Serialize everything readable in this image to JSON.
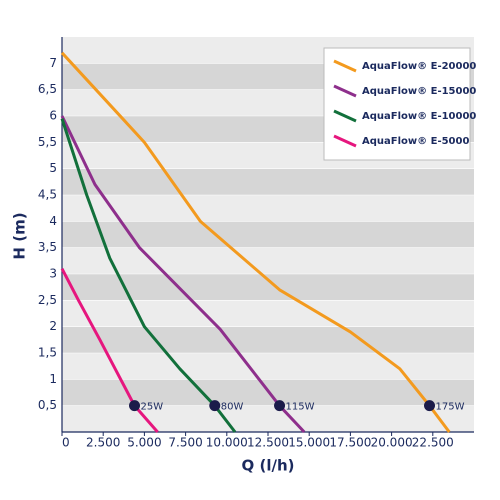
{
  "chart_data": {
    "type": "line",
    "x_label": "Q (l/h)",
    "y_label": "H (m)",
    "xlim": [
      0,
      25000
    ],
    "ylim": [
      0,
      7.5
    ],
    "xticks": [
      0,
      {
        "value": 2500,
        "label": "2.500"
      },
      {
        "value": 5000,
        "label": "5.000"
      },
      {
        "value": 7500,
        "label": "7.500"
      },
      {
        "value": 10000,
        "label": "10.000"
      },
      {
        "value": 12500,
        "label": "12.500"
      },
      {
        "value": 15000,
        "label": "15.000"
      },
      {
        "value": 17500,
        "label": "17.500"
      },
      {
        "value": 20000,
        "label": "20.000"
      },
      {
        "value": 22500,
        "label": "22.500"
      }
    ],
    "yticks": [
      {
        "value": 0.5,
        "label": "0,5"
      },
      1,
      {
        "value": 1.5,
        "label": "1,5"
      },
      2,
      {
        "value": 2.5,
        "label": "2,5"
      },
      3,
      {
        "value": 3.5,
        "label": "3,5"
      },
      4,
      {
        "value": 4.5,
        "label": "4,5"
      },
      5,
      {
        "value": 5.5,
        "label": "5,5"
      },
      6,
      {
        "value": 6.5,
        "label": "6,5"
      },
      7
    ],
    "grid": true,
    "legend_position": "top-right",
    "series": [
      {
        "name": "AquaFlow® E-20000",
        "color": "#f39a1e",
        "x": [
          0,
          5000,
          8400,
          13200,
          17500,
          20500,
          22300,
          23500
        ],
        "values": [
          7.2,
          5.5,
          4.0,
          2.7,
          1.9,
          1.2,
          0.5,
          0
        ]
      },
      {
        "name": "AquaFlow® E-15000",
        "color": "#8e2f8c",
        "x": [
          0,
          2000,
          4700,
          9600,
          13200,
          14700
        ],
        "values": [
          6.0,
          4.7,
          3.5,
          1.95,
          0.5,
          0
        ]
      },
      {
        "name": "AquaFlow® E-10000",
        "color": "#12703b",
        "x": [
          0,
          1500,
          2900,
          5000,
          7150,
          9270,
          10500
        ],
        "values": [
          5.95,
          4.5,
          3.3,
          2.0,
          1.2,
          0.5,
          0
        ]
      },
      {
        "name": "AquaFlow® E-5000",
        "color": "#e6167e",
        "x": [
          0,
          1000,
          2300,
          4400,
          5800
        ],
        "values": [
          3.1,
          2.5,
          1.75,
          0.5,
          0
        ]
      }
    ],
    "annotations": [
      {
        "x": 4400,
        "y": 0.5,
        "text": "25W"
      },
      {
        "x": 9270,
        "y": 0.5,
        "text": "80W"
      },
      {
        "x": 13200,
        "y": 0.5,
        "text": "115W"
      },
      {
        "x": 22300,
        "y": 0.5,
        "text": "175W"
      }
    ]
  }
}
